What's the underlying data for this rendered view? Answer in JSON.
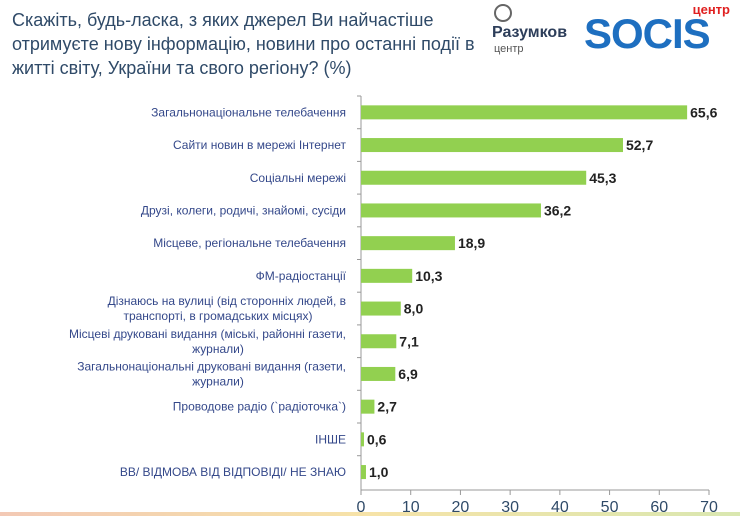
{
  "title": "Скажіть, будь-ласка, з яких джерел Ви найчастіше отримуєте нову інформацію, новини про останні події в житті світу, України та свого регіону? (%)",
  "logos": {
    "razumkov": "Разумков",
    "razumkov_sub": "центр",
    "socis": "SOCIS",
    "socis_sub": "центр"
  },
  "colors": {
    "bar": "#92d050",
    "label": "#34488a"
  },
  "chart_data": {
    "type": "bar",
    "orientation": "horizontal",
    "categories": [
      [
        "Загальнонаціональне телебачення"
      ],
      [
        "Сайти новин в мережі Інтернет"
      ],
      [
        "Соціальні мережі"
      ],
      [
        "Друзі, колеги, родичі, знайомі, сусіди"
      ],
      [
        "Місцеве, регіональне телебачення"
      ],
      [
        "ФМ-радіостанції"
      ],
      [
        "Дізнаюсь на вулиці (від сторонніх людей, в",
        "транспорті, в громадських місцях)"
      ],
      [
        "Місцеві друковані видання (міські, районні газети,",
        "журнали)"
      ],
      [
        "Загальнонаціональні друковані видання (газети,",
        "журнали)"
      ],
      [
        "Проводове радіо (`радіоточка`)"
      ],
      [
        "ІНШЕ"
      ],
      [
        "ВВ/ ВІДМОВА ВІД ВІДПОВІДІ/ НЕ ЗНАЮ"
      ]
    ],
    "values": [
      65.6,
      52.7,
      45.3,
      36.2,
      18.9,
      10.3,
      8.0,
      7.1,
      6.9,
      2.7,
      0.6,
      1.0
    ],
    "value_labels": [
      "65,6",
      "52,7",
      "45,3",
      "36,2",
      "18,9",
      "10,3",
      "8,0",
      "7,1",
      "6,9",
      "2,7",
      "0,6",
      "1,0"
    ],
    "xlim": [
      0,
      70
    ],
    "xticks": [
      0,
      10,
      20,
      30,
      40,
      50,
      60,
      70
    ],
    "grid": false
  }
}
